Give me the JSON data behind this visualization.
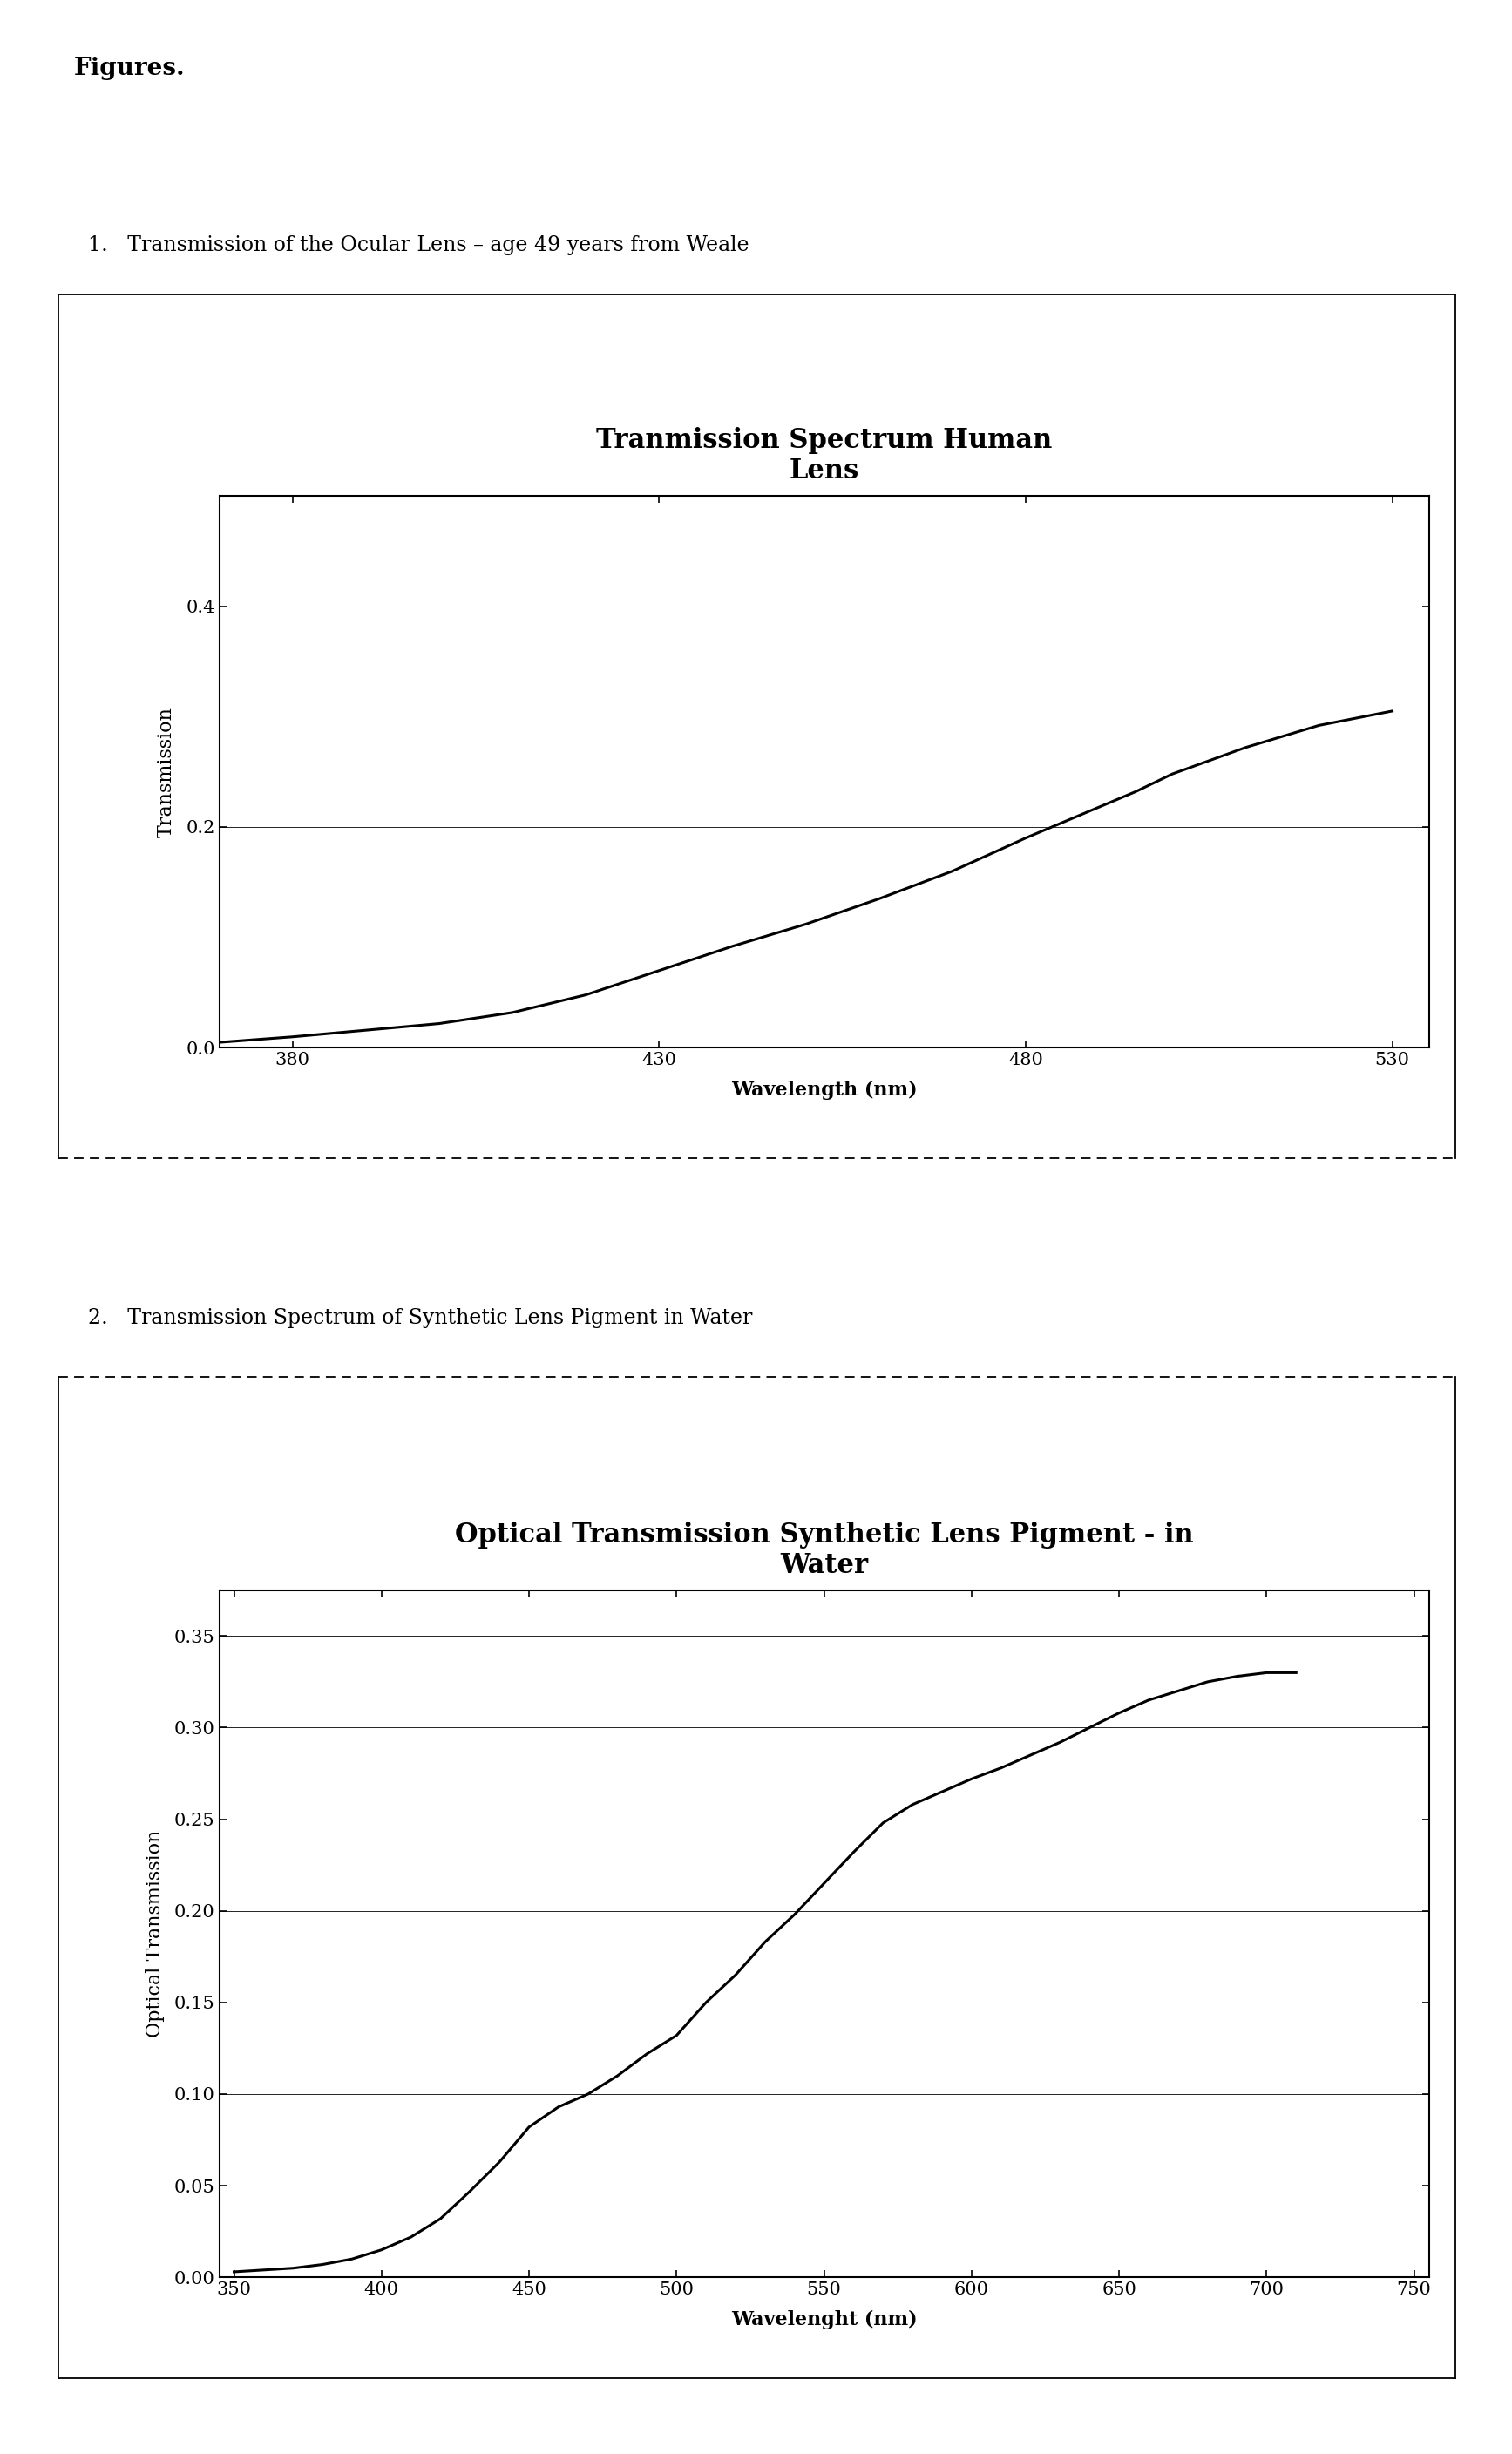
{
  "page_background": "#ffffff",
  "figures_label": "Figures.",
  "chart1": {
    "label": "1.   Transmission of the Ocular Lens – age 49 years from Weale",
    "title": "Tranmission Spectrum Human\nLens",
    "xlabel": "Wavelength (nm)",
    "ylabel": "Transmission",
    "xlim": [
      370,
      535
    ],
    "ylim": [
      0,
      0.5
    ],
    "xticks": [
      380,
      430,
      480,
      530
    ],
    "yticks": [
      0,
      0.2,
      0.4
    ],
    "x": [
      370,
      380,
      390,
      400,
      410,
      420,
      430,
      440,
      450,
      460,
      470,
      480,
      490,
      495,
      500,
      510,
      520,
      530
    ],
    "y": [
      0.005,
      0.01,
      0.016,
      0.022,
      0.032,
      0.048,
      0.07,
      0.092,
      0.112,
      0.135,
      0.16,
      0.19,
      0.218,
      0.232,
      0.248,
      0.272,
      0.292,
      0.305
    ]
  },
  "chart2": {
    "label": "2.   Transmission Spectrum of Synthetic Lens Pigment in Water",
    "title": "Optical Transmission Synthetic Lens Pigment - in\nWater",
    "xlabel": "Wavelenght (nm)",
    "ylabel": "Optical Transmission",
    "xlim": [
      345,
      755
    ],
    "ylim": [
      0,
      0.375
    ],
    "xticks": [
      350,
      400,
      450,
      500,
      550,
      600,
      650,
      700,
      750
    ],
    "yticks": [
      0,
      0.05,
      0.1,
      0.15,
      0.2,
      0.25,
      0.3,
      0.35
    ],
    "x": [
      350,
      360,
      370,
      380,
      390,
      400,
      410,
      420,
      430,
      440,
      450,
      460,
      470,
      480,
      490,
      500,
      510,
      520,
      530,
      540,
      550,
      560,
      565,
      570,
      580,
      590,
      600,
      610,
      620,
      630,
      640,
      650,
      660,
      670,
      680,
      690,
      700,
      710
    ],
    "y": [
      0.003,
      0.004,
      0.005,
      0.007,
      0.01,
      0.015,
      0.022,
      0.032,
      0.047,
      0.063,
      0.082,
      0.093,
      0.1,
      0.11,
      0.122,
      0.132,
      0.15,
      0.165,
      0.183,
      0.198,
      0.215,
      0.232,
      0.24,
      0.248,
      0.258,
      0.265,
      0.272,
      0.278,
      0.285,
      0.292,
      0.3,
      0.308,
      0.315,
      0.32,
      0.325,
      0.328,
      0.33,
      0.33
    ]
  },
  "title_fontsize": 22,
  "axis_label_fontsize": 16,
  "tick_fontsize": 15,
  "label_fontsize": 17,
  "figures_fontsize": 20,
  "line_color": "#000000",
  "line_width": 2.2
}
